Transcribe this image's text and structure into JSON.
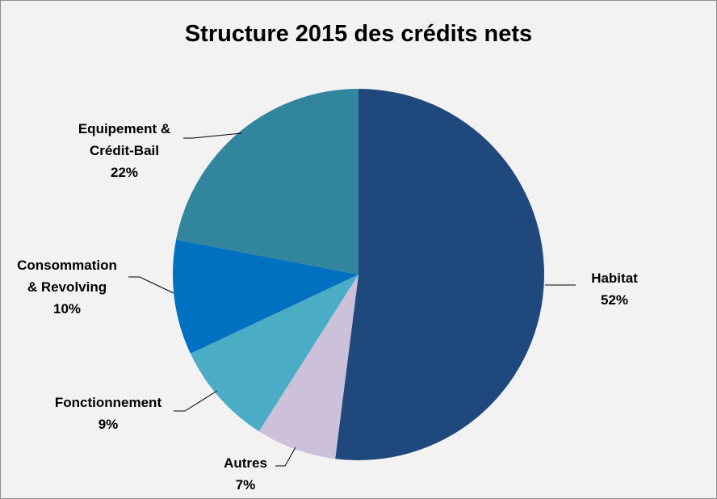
{
  "chart_data": {
    "type": "pie",
    "title": "Structure 2015 des crédits nets",
    "slices": [
      {
        "label_lines": [
          "Habitat"
        ],
        "percent_label": "52%",
        "value": 52,
        "color": "#1f497d"
      },
      {
        "label_lines": [
          "Autres"
        ],
        "percent_label": "7%",
        "value": 7,
        "color": "#ccc0da"
      },
      {
        "label_lines": [
          "Fonctionnement"
        ],
        "percent_label": "9%",
        "value": 9,
        "color": "#4bacc6"
      },
      {
        "label_lines": [
          "Consommation",
          "& Revolving"
        ],
        "percent_label": "10%",
        "value": 10,
        "color": "#0070c0"
      },
      {
        "label_lines": [
          "Equipement &",
          "Crédit-Bail"
        ],
        "percent_label": "22%",
        "value": 22,
        "color": "#31859c"
      }
    ],
    "start": "12 o'clock",
    "direction": "clockwise",
    "legend": "none",
    "data_labels": "outside with leader lines"
  }
}
